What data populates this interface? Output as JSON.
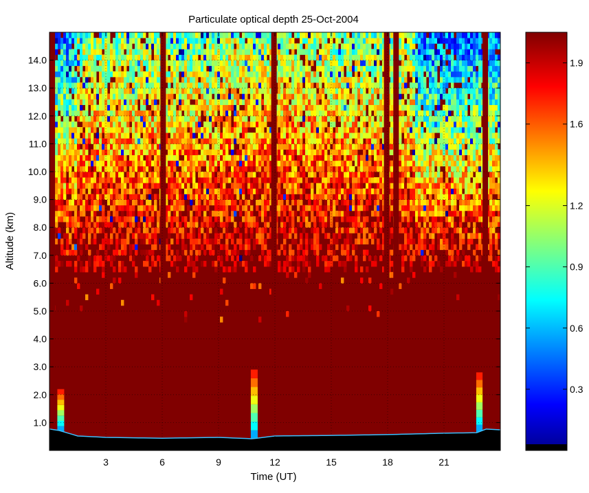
{
  "chart_data": {
    "type": "heatmap",
    "title": "Particulate optical depth  25-Oct-2004",
    "xlabel": "Time (UT)",
    "ylabel": "Altitude (km)",
    "xlim": [
      0,
      24
    ],
    "ylim": [
      0,
      15
    ],
    "x_ticks": [
      3,
      6,
      9,
      12,
      15,
      18,
      21
    ],
    "x_tick_labels": [
      "3",
      "6",
      "9",
      "12",
      "15",
      "18",
      "21"
    ],
    "y_ticks": [
      1,
      2,
      3,
      4,
      5,
      6,
      7,
      8,
      9,
      10,
      11,
      12,
      13,
      14
    ],
    "y_tick_labels": [
      "1.0",
      "2.0",
      "3.0",
      "4.0",
      "5.0",
      "6.0",
      "7.0",
      "8.0",
      "9.0",
      "10.0",
      "11.0",
      "12.0",
      "13.0",
      "14.0"
    ],
    "grid": true,
    "colormap": "jet",
    "clim": [
      0,
      2.05
    ],
    "colorbar": {
      "ticks": [
        0.3,
        0.6,
        0.9,
        1.2,
        1.6,
        1.9
      ],
      "tick_labels": [
        "0.3",
        "0.6",
        "0.9",
        "1.2",
        "1.6",
        "1.9"
      ]
    },
    "colors": {
      "saturated": "#800000",
      "surface": "#000000"
    },
    "saturated_columns_time": [
      0.15,
      6.05,
      11.95,
      17.95,
      18.45,
      23.2
    ],
    "surface_altitude": [
      [
        0,
        0.75
      ],
      [
        0.5,
        0.7
      ],
      [
        1.5,
        0.5
      ],
      [
        3,
        0.45
      ],
      [
        6,
        0.42
      ],
      [
        9,
        0.45
      ],
      [
        10.8,
        0.4
      ],
      [
        12,
        0.5
      ],
      [
        15,
        0.52
      ],
      [
        18,
        0.55
      ],
      [
        21,
        0.6
      ],
      [
        22.8,
        0.62
      ],
      [
        23.2,
        0.75
      ],
      [
        24,
        0.72
      ]
    ],
    "aerosol_plumes": [
      {
        "time": 0.6,
        "top": 2.2
      },
      {
        "time": 10.9,
        "top": 2.9
      },
      {
        "time": 22.9,
        "top": 2.8
      }
    ]
  }
}
